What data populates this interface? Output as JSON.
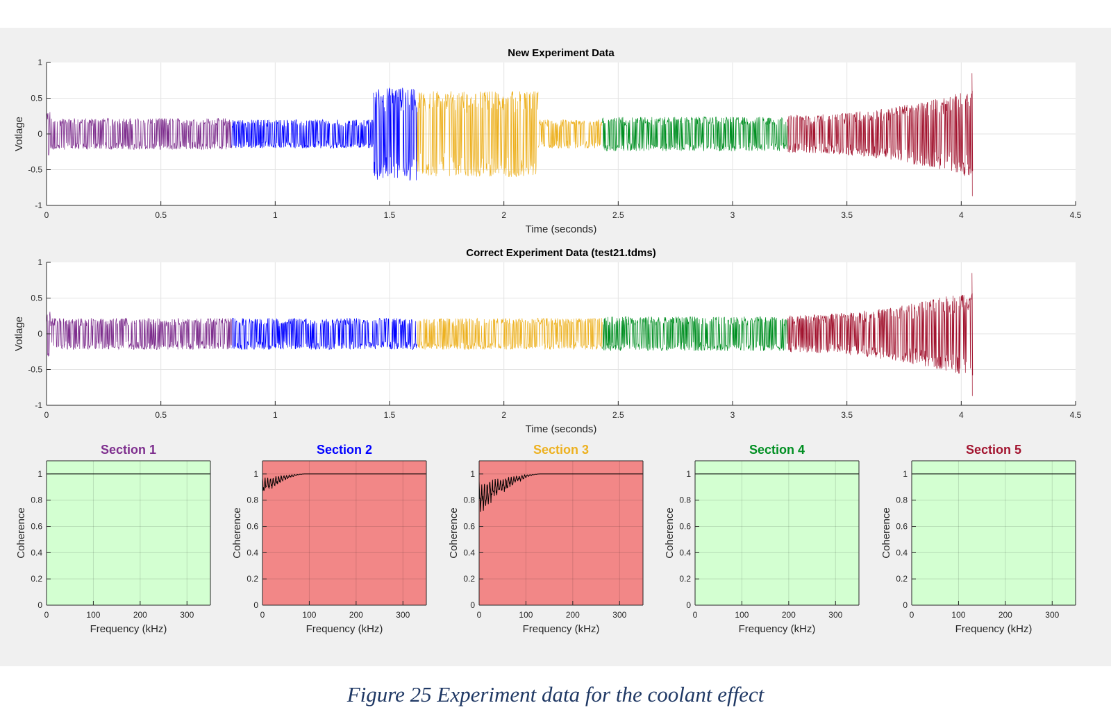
{
  "caption": "Figure 25 Experiment data for the coolant effect",
  "chart_data": [
    {
      "type": "line",
      "title": "New Experiment Data",
      "xlabel": "Time (seconds)",
      "ylabel": "Votlage",
      "xlim": [
        0,
        4.5
      ],
      "ylim": [
        -1,
        1
      ],
      "xticks": [
        "0",
        "0.5",
        "1",
        "1.5",
        "2",
        "2.5",
        "3",
        "3.5",
        "4",
        "4.5"
      ],
      "yticks": [
        "-1",
        "-0.5",
        "0",
        "0.5",
        "1"
      ],
      "grid": true,
      "segments": [
        {
          "x": [
            0,
            0.81
          ],
          "amp": 0.22,
          "color": "#7e2f8e"
        },
        {
          "x": [
            0.81,
            1.43
          ],
          "amp": 0.2,
          "color": "#0000ff"
        },
        {
          "x": [
            1.43,
            1.62
          ],
          "amp": 0.65,
          "color": "#0000ff"
        },
        {
          "x": [
            1.62,
            2.15
          ],
          "amp": 0.6,
          "color": "#edb120"
        },
        {
          "x": [
            2.15,
            2.43
          ],
          "amp": 0.2,
          "color": "#edb120"
        },
        {
          "x": [
            2.43,
            3.24
          ],
          "amp": 0.24,
          "color": "#008f22"
        },
        {
          "x": [
            3.24,
            4.05
          ],
          "amp": 0.5,
          "color": "#a2142f"
        }
      ]
    },
    {
      "type": "line",
      "title": "Correct Experiment Data (test21.tdms)",
      "xlabel": "Time (seconds)",
      "ylabel": "Votlage",
      "xlim": [
        0,
        4.5
      ],
      "ylim": [
        -1,
        1
      ],
      "xticks": [
        "0",
        "0.5",
        "1",
        "1.5",
        "2",
        "2.5",
        "3",
        "3.5",
        "4",
        "4.5"
      ],
      "yticks": [
        "-1",
        "-0.5",
        "0",
        "0.5",
        "1"
      ],
      "grid": true,
      "segments": [
        {
          "x": [
            0,
            0.81
          ],
          "amp": 0.22,
          "color": "#7e2f8e"
        },
        {
          "x": [
            0.81,
            1.62
          ],
          "amp": 0.22,
          "color": "#0000ff"
        },
        {
          "x": [
            1.62,
            2.43
          ],
          "amp": 0.22,
          "color": "#edb120"
        },
        {
          "x": [
            2.43,
            3.24
          ],
          "amp": 0.24,
          "color": "#008f22"
        },
        {
          "x": [
            3.24,
            4.05
          ],
          "amp": 0.5,
          "color": "#a2142f"
        }
      ]
    },
    {
      "type": "line",
      "title": "Section 1",
      "title_color": "#7e2f8e",
      "xlabel": "Frequency (kHz)",
      "ylabel": "Coherence",
      "xlim": [
        0,
        350
      ],
      "ylim": [
        0,
        1.1
      ],
      "xticks": [
        "0",
        "100",
        "200",
        "300"
      ],
      "yticks": [
        "0",
        "0.2",
        "0.4",
        "0.6",
        "0.8",
        "1"
      ],
      "background": "#d3ffd1",
      "coherence": {
        "dip": 0,
        "range": 0
      }
    },
    {
      "type": "line",
      "title": "Section 2",
      "title_color": "#0000ff",
      "xlabel": "Frequency (kHz)",
      "ylabel": "Coherence",
      "xlim": [
        0,
        350
      ],
      "ylim": [
        0,
        1.1
      ],
      "xticks": [
        "0",
        "100",
        "200",
        "300"
      ],
      "yticks": [
        "0",
        "0.2",
        "0.4",
        "0.6",
        "0.8",
        "1"
      ],
      "background": "#f28787",
      "coherence": {
        "dip": 0.17,
        "range": 90
      }
    },
    {
      "type": "line",
      "title": "Section 3",
      "title_color": "#edb120",
      "xlabel": "Frequency (kHz)",
      "ylabel": "Coherence",
      "xlim": [
        0,
        350
      ],
      "ylim": [
        0,
        1.1
      ],
      "xticks": [
        "0",
        "100",
        "200",
        "300"
      ],
      "yticks": [
        "0",
        "0.2",
        "0.4",
        "0.6",
        "0.8",
        "1"
      ],
      "background": "#f28787",
      "coherence": {
        "dip": 0.33,
        "range": 130
      }
    },
    {
      "type": "line",
      "title": "Section 4",
      "title_color": "#008f22",
      "xlabel": "Frequency (kHz)",
      "ylabel": "Coherence",
      "xlim": [
        0,
        350
      ],
      "ylim": [
        0,
        1.1
      ],
      "xticks": [
        "0",
        "100",
        "200",
        "300"
      ],
      "yticks": [
        "0",
        "0.2",
        "0.4",
        "0.6",
        "0.8",
        "1"
      ],
      "background": "#d3ffd1",
      "coherence": {
        "dip": 0,
        "range": 0
      }
    },
    {
      "type": "line",
      "title": "Section 5",
      "title_color": "#a2142f",
      "xlabel": "Frequency (kHz)",
      "ylabel": "Coherence",
      "xlim": [
        0,
        350
      ],
      "ylim": [
        0,
        1.1
      ],
      "xticks": [
        "0",
        "100",
        "200",
        "300"
      ],
      "yticks": [
        "0",
        "0.2",
        "0.4",
        "0.6",
        "0.8",
        "1"
      ],
      "background": "#d3ffd1",
      "coherence": {
        "dip": 0,
        "range": 0
      }
    }
  ]
}
